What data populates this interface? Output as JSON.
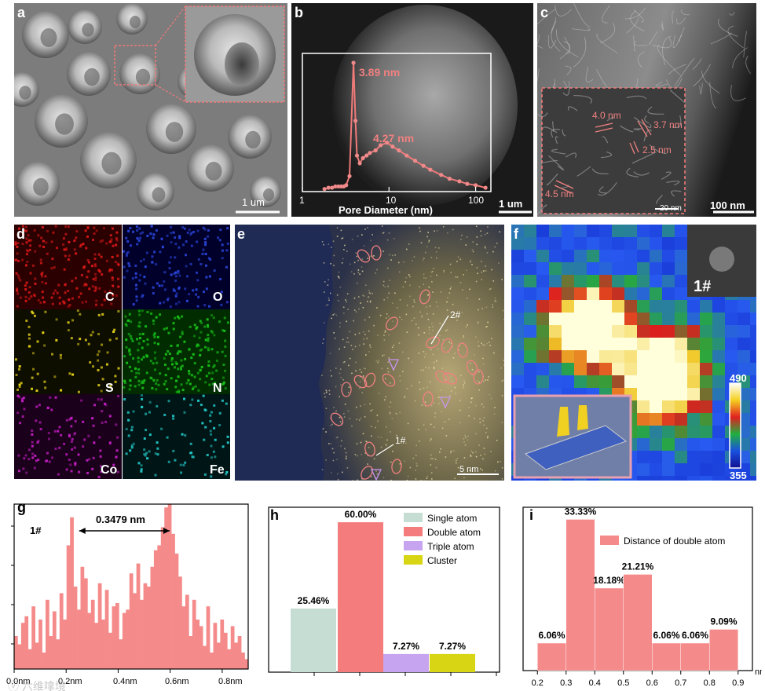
{
  "figure": {
    "panel_letters": [
      "a",
      "b",
      "c",
      "d",
      "e",
      "f",
      "g",
      "h",
      "i"
    ],
    "a": {
      "scalebar": "1 um"
    },
    "b": {
      "xlabel": "Pore Diameter (nm)",
      "xticks": [
        "1",
        "10",
        "100"
      ],
      "scalebar": "1 um",
      "annotations": [
        "3.89 nm",
        "4.27 nm"
      ]
    },
    "c": {
      "annotations": [
        "4.0 nm",
        "3.7 nm",
        "2.5 nm",
        "4.5 nm"
      ],
      "inset_scalebar": "20 nm",
      "scalebar": "100 nm"
    },
    "d": {
      "elements": [
        "C",
        "O",
        "S",
        "N",
        "Co",
        "Fe"
      ]
    },
    "e": {
      "labels": [
        "2#",
        "1#"
      ],
      "scalebar": "5 nm"
    },
    "f": {
      "inset_label": "1#",
      "colorbar_max": "490",
      "colorbar_min": "355"
    },
    "g": {
      "label": "1#",
      "measurement": "0.3479 nm",
      "xticks": [
        "0.0nm",
        "0.2nm",
        "0.4nm",
        "0.6nm",
        "0.8nm"
      ]
    },
    "h": {},
    "i": {
      "xticks": [
        "0.2",
        "0.3",
        "0.4",
        "0.5",
        "0.6",
        "0.7",
        "0.8",
        "0.9"
      ],
      "xunit": "nm"
    },
    "watermark": "ⓥ 六维嗱境"
  },
  "chart_data": [
    {
      "type": "line",
      "panel": "b",
      "xlabel": "Pore Diameter (nm)",
      "xscale": "log",
      "xlim": [
        1,
        150
      ],
      "x": [
        1.8,
        2.0,
        2.2,
        2.4,
        2.6,
        2.8,
        3.0,
        3.2,
        3.5,
        3.89,
        4.1,
        4.27,
        4.6,
        5.0,
        5.5,
        6.0,
        7.0,
        8.0,
        9.5,
        11,
        13,
        16,
        20,
        25,
        30,
        40,
        50,
        65,
        80,
        100,
        130
      ],
      "y": [
        0.02,
        0.03,
        0.03,
        0.04,
        0.04,
        0.04,
        0.04,
        0.05,
        0.12,
        1.0,
        0.55,
        0.28,
        0.22,
        0.26,
        0.28,
        0.3,
        0.32,
        0.36,
        0.38,
        0.35,
        0.32,
        0.28,
        0.24,
        0.2,
        0.17,
        0.13,
        0.1,
        0.08,
        0.06,
        0.05,
        0.03
      ],
      "annotations": [
        "3.89 nm",
        "4.27 nm"
      ]
    },
    {
      "type": "bar",
      "panel": "g",
      "label": "1#",
      "xlim": [
        0.0,
        0.9
      ],
      "xticks": [
        "0.0nm",
        "0.2nm",
        "0.4nm",
        "0.6nm",
        "0.8nm"
      ],
      "values": [
        0.2,
        0.15,
        0.28,
        0.32,
        0.12,
        0.38,
        0.16,
        0.3,
        0.1,
        0.42,
        0.2,
        0.35,
        0.18,
        0.46,
        0.3,
        0.75,
        0.92,
        0.5,
        0.36,
        0.62,
        0.55,
        0.34,
        0.42,
        0.28,
        0.52,
        0.3,
        0.48,
        0.22,
        0.38,
        0.4,
        0.18,
        0.34,
        0.36,
        0.58,
        0.46,
        0.64,
        0.42,
        0.52,
        0.5,
        0.62,
        0.72,
        0.75,
        0.86,
        0.98,
        1.0,
        0.82,
        0.7,
        0.56,
        0.38,
        0.45,
        0.2,
        0.42,
        0.3,
        0.26,
        0.14,
        0.38,
        0.1,
        0.28,
        0.16,
        0.3,
        0.22,
        0.12,
        0.26,
        0.16,
        0.2,
        0.1,
        0.06
      ],
      "annotations": [
        "0.3479 nm"
      ]
    },
    {
      "type": "bar",
      "panel": "h",
      "categories": [
        "Single atom",
        "Double atom",
        "Triple atom",
        "Cluster"
      ],
      "values": [
        25.46,
        60.0,
        7.27,
        7.27
      ],
      "value_labels": [
        "25.46%",
        "60.00%",
        "7.27%",
        "7.27%"
      ],
      "colors": [
        "#c5ddd2",
        "#f47c7c",
        "#c7a4f0",
        "#d8d515"
      ],
      "legend": "top-right",
      "ylim": [
        0,
        66
      ]
    },
    {
      "type": "bar",
      "panel": "i",
      "bins": [
        [
          0.2,
          0.3
        ],
        [
          0.3,
          0.4
        ],
        [
          0.4,
          0.5
        ],
        [
          0.5,
          0.6
        ],
        [
          0.6,
          0.7
        ],
        [
          0.7,
          0.8
        ],
        [
          0.8,
          0.9
        ]
      ],
      "values": [
        6.06,
        33.33,
        18.18,
        21.21,
        6.06,
        6.06,
        9.09
      ],
      "value_labels": [
        "6.06%",
        "33.33%",
        "18.18%",
        "21.21%",
        "6.06%",
        "6.06%",
        "9.09%"
      ],
      "series": [
        {
          "name": "Distance of double atom",
          "values": [
            6.06,
            33.33,
            18.18,
            21.21,
            6.06,
            6.06,
            9.09
          ]
        }
      ],
      "xlim": [
        0.2,
        0.9
      ],
      "xticks": [
        "0.2",
        "0.3",
        "0.4",
        "0.5",
        "0.6",
        "0.7",
        "0.8",
        "0.9"
      ],
      "xunit": "nm",
      "ylim": [
        0,
        36
      ],
      "legend": "top-right"
    }
  ]
}
